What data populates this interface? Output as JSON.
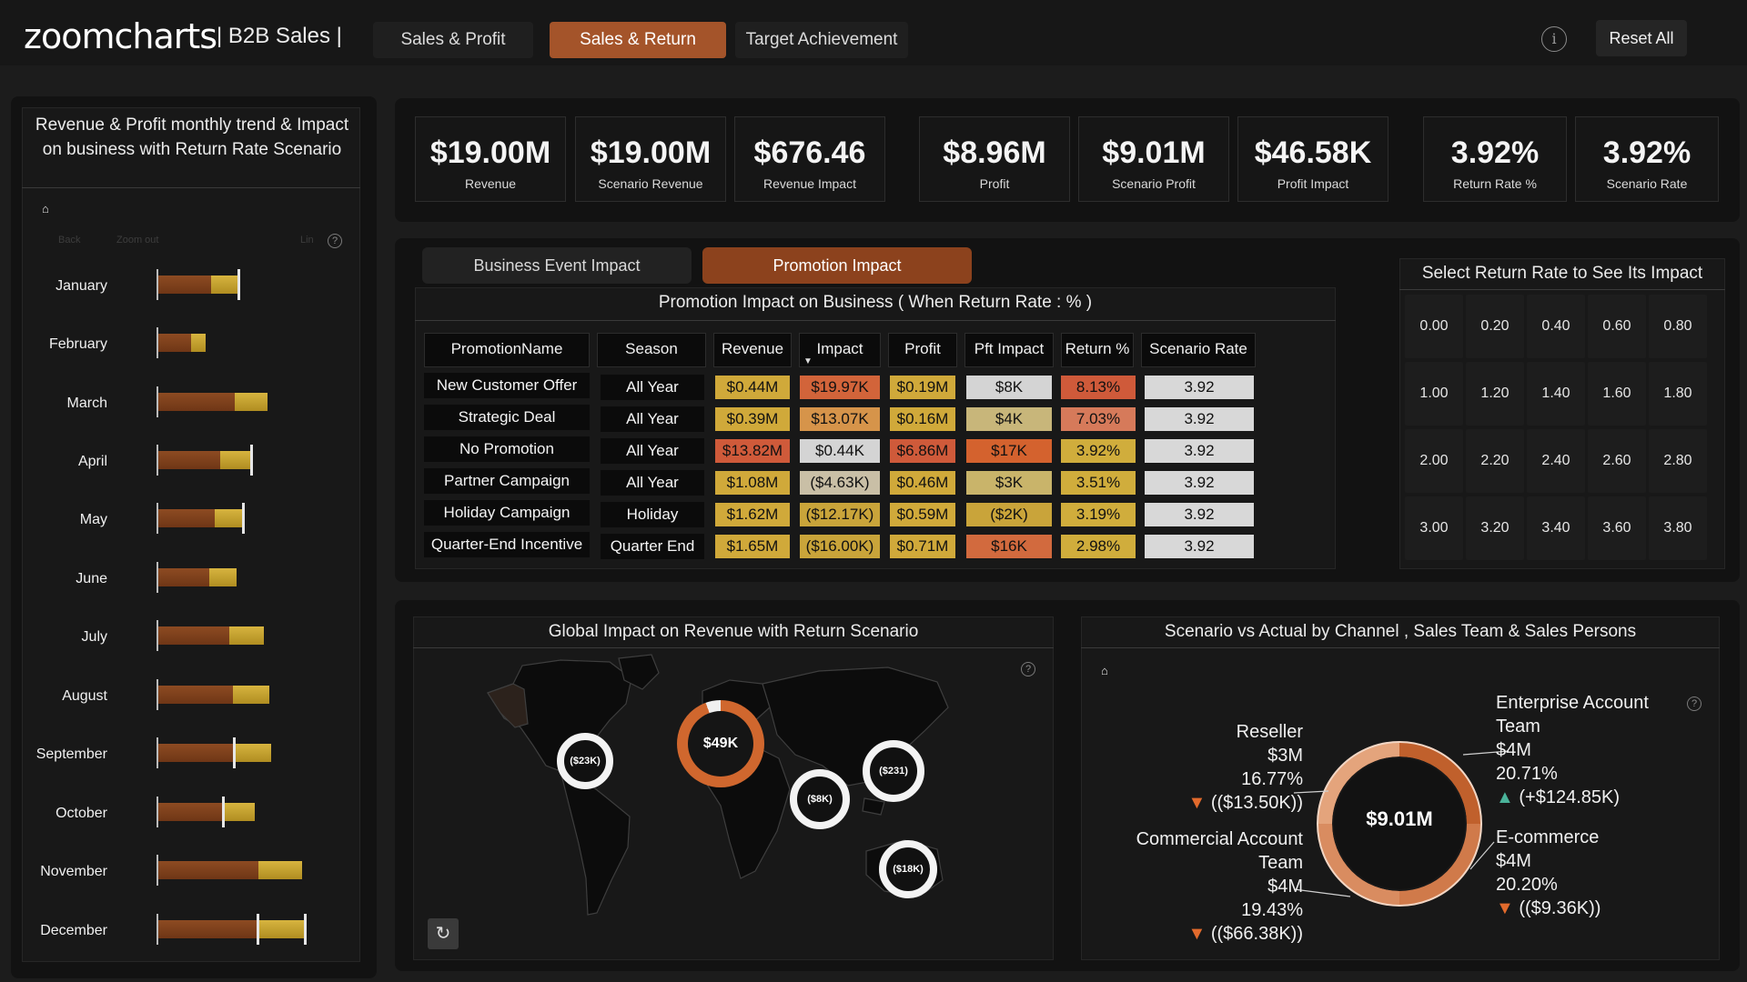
{
  "header": {
    "logo": "zoomcharts",
    "app_title": "| B2B Sales |",
    "tabs": [
      {
        "label": "Sales & Profit",
        "active": false
      },
      {
        "label": "Sales & Return",
        "active": true
      },
      {
        "label": "Target Achievement",
        "active": false
      }
    ],
    "info_icon": "info-icon",
    "reset_label": "Reset All"
  },
  "colors": {
    "accent": "#a4542a",
    "bar_brown": "#7d4019",
    "bar_gold": "#c9a534",
    "decrease": "#e26a2c",
    "increase": "#4ab39a"
  },
  "left_panel": {
    "title": "Revenue & Profit monthly trend & Impact on business with Return Rate Scenario",
    "controls": [
      "Back",
      "Zoom out",
      "Lin"
    ],
    "months": [
      "January",
      "February",
      "March",
      "April",
      "May",
      "June",
      "July",
      "August",
      "September",
      "October",
      "November",
      "December"
    ]
  },
  "kpis": [
    {
      "value": "$19.00M",
      "label": "Revenue"
    },
    {
      "value": "$19.00M",
      "label": "Scenario Revenue"
    },
    {
      "value": "$676.46",
      "label": "Revenue Impact"
    },
    {
      "value": "$8.96M",
      "label": "Profit"
    },
    {
      "value": "$9.01M",
      "label": "Scenario Profit"
    },
    {
      "value": "$46.58K",
      "label": "Profit Impact"
    },
    {
      "value": "3.92%",
      "label": "Return Rate %"
    },
    {
      "value": "3.92%",
      "label": "Scenario Rate"
    }
  ],
  "impact_tabs": [
    {
      "label": "Business Event Impact",
      "active": false
    },
    {
      "label": "Promotion Impact",
      "active": true
    }
  ],
  "promo_table": {
    "title": "Promotion Impact on Business ( When Return Rate : % )",
    "columns": [
      "PromotionName",
      "Season",
      "Revenue",
      "Impact",
      "Profit",
      "Pft Impact",
      "Return %",
      "Scenario Rate"
    ],
    "rows": [
      {
        "name": "New Customer Offer",
        "season": "All Year",
        "revenue": "$0.44M",
        "impact": "$19.97K",
        "profit": "$0.19M",
        "pft_impact": "$8K",
        "return": "8.13%",
        "rate": "3.92"
      },
      {
        "name": "Strategic Deal",
        "season": "All Year",
        "revenue": "$0.39M",
        "impact": "$13.07K",
        "profit": "$0.16M",
        "pft_impact": "$4K",
        "return": "7.03%",
        "rate": "3.92"
      },
      {
        "name": "No Promotion",
        "season": "All Year",
        "revenue": "$13.82M",
        "impact": "$0.44K",
        "profit": "$6.86M",
        "pft_impact": "$17K",
        "return": "3.92%",
        "rate": "3.92"
      },
      {
        "name": "Partner Campaign",
        "season": "All Year",
        "revenue": "$1.08M",
        "impact": "($4.63K)",
        "profit": "$0.46M",
        "pft_impact": "$3K",
        "return": "3.51%",
        "rate": "3.92"
      },
      {
        "name": "Holiday Campaign",
        "season": "Holiday",
        "revenue": "$1.62M",
        "impact": "($12.17K)",
        "profit": "$0.59M",
        "pft_impact": "($2K)",
        "return": "3.19%",
        "rate": "3.92"
      },
      {
        "name": "Quarter-End Incentive",
        "season": "Quarter End",
        "revenue": "$1.65M",
        "impact": "($16.00K)",
        "profit": "$0.71M",
        "pft_impact": "$16K",
        "return": "2.98%",
        "rate": "3.92"
      }
    ]
  },
  "return_rate_selector": {
    "title": "Select Return Rate to See Its Impact",
    "values": [
      "0.00",
      "0.20",
      "0.40",
      "0.60",
      "0.80",
      "1.00",
      "1.20",
      "1.40",
      "1.60",
      "1.80",
      "2.00",
      "2.20",
      "2.40",
      "2.60",
      "2.80",
      "3.00",
      "3.20",
      "3.40",
      "3.60",
      "3.80"
    ]
  },
  "map": {
    "title": "Global Impact on Revenue with Return Scenario",
    "bubbles": [
      {
        "label": "($23K)"
      },
      {
        "label": "$49K"
      },
      {
        "label": "($8K)"
      },
      {
        "label": "($231)"
      },
      {
        "label": "($18K)"
      }
    ]
  },
  "donut": {
    "title": "Scenario vs Actual by Channel , Sales Team & Sales Persons",
    "center": "$9.01M",
    "segments": [
      {
        "name": "Reseller",
        "value": "$3M",
        "pct": "16.77%",
        "change": "($13.50K)",
        "dir": "down"
      },
      {
        "name": "Commercial Account Team",
        "value": "$4M",
        "pct": "19.43%",
        "change": "($66.38K)",
        "dir": "down"
      },
      {
        "name": "Enterprise Account Team",
        "value": "$4M",
        "pct": "20.71%",
        "change": "+$124.85K",
        "dir": "up"
      },
      {
        "name": "E-commerce",
        "value": "$4M",
        "pct": "20.20%",
        "change": "($9.36K)",
        "dir": "down"
      }
    ]
  }
}
